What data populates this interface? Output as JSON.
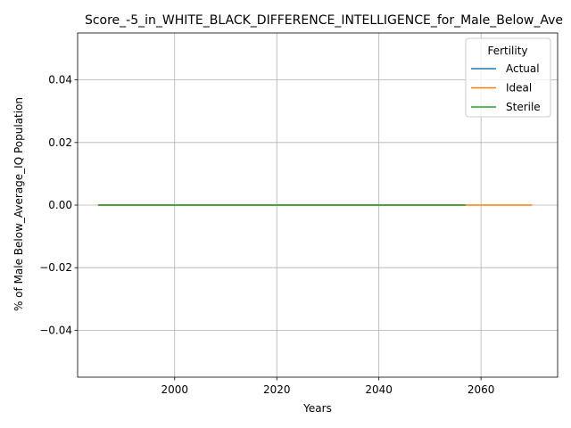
{
  "chart_data": {
    "type": "line",
    "title": "Score_-5_in_WHITE_BLACK_DIFFERENCE_INTELLIGENCE_for_Male_Below_Ave",
    "xlabel": "Years",
    "ylabel": "% of Male Below_Average_IQ Population",
    "xlim": [
      1981,
      2075
    ],
    "ylim": [
      -0.055,
      0.055
    ],
    "xticks": [
      2000,
      2020,
      2040,
      2060
    ],
    "xtick_labels": [
      "2000",
      "2020",
      "2040",
      "2060"
    ],
    "yticks": [
      -0.04,
      -0.02,
      0.0,
      0.02,
      0.04
    ],
    "ytick_labels": [
      "−0.04",
      "−0.02",
      "0.00",
      "0.02",
      "0.04"
    ],
    "grid": true,
    "legend": {
      "title": "Fertility",
      "placement": "top-right"
    },
    "series": [
      {
        "name": "Actual",
        "color": "#1f77b4",
        "x": [
          1985,
          2057
        ],
        "y": [
          0.0,
          0.0
        ]
      },
      {
        "name": "Ideal",
        "color": "#ff7f0e",
        "x": [
          1985,
          2070
        ],
        "y": [
          0.0,
          0.0
        ]
      },
      {
        "name": "Sterile",
        "color": "#2ca02c",
        "x": [
          1985,
          2057
        ],
        "y": [
          0.0,
          0.0
        ]
      }
    ]
  }
}
